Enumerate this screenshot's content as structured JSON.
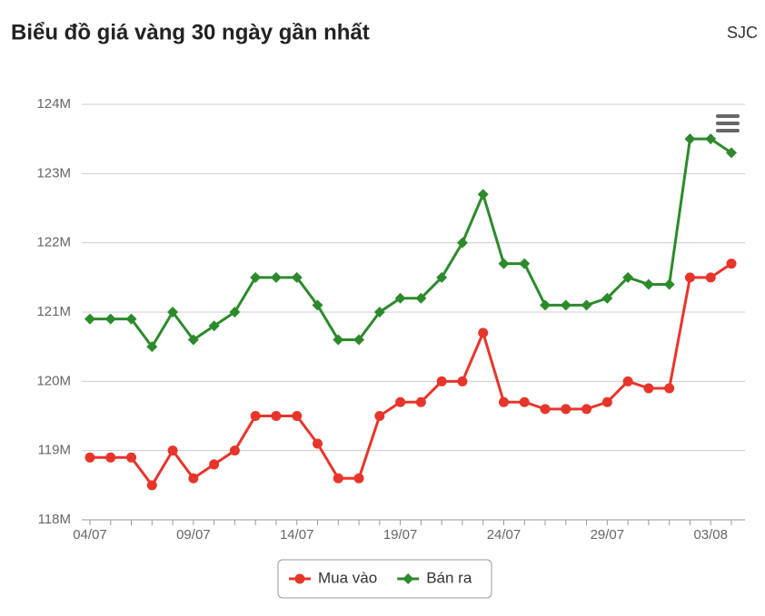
{
  "header": {
    "title": "Biểu đồ giá vàng 30 ngày gần nhất",
    "source": "SJC"
  },
  "chart_data": {
    "type": "line",
    "categories": [
      "04/07",
      null,
      null,
      null,
      null,
      "09/07",
      null,
      null,
      null,
      null,
      "14/07",
      null,
      null,
      null,
      null,
      "19/07",
      null,
      null,
      null,
      null,
      "24/07",
      null,
      null,
      null,
      null,
      "29/07",
      null,
      null,
      null,
      null,
      "03/08",
      null
    ],
    "series": [
      {
        "name": "Mua vào",
        "color": "#e8352b",
        "marker": "circle",
        "values": [
          118900000,
          118900000,
          118900000,
          118500000,
          119000000,
          118600000,
          118800000,
          119000000,
          119500000,
          119500000,
          119500000,
          119100000,
          118600000,
          118600000,
          119500000,
          119700000,
          119700000,
          120000000,
          120000000,
          120700000,
          119700000,
          119700000,
          119600000,
          119600000,
          119600000,
          119700000,
          120000000,
          119900000,
          119900000,
          121500000,
          121500000,
          121700000
        ]
      },
      {
        "name": "Bán ra",
        "color": "#2c8a2c",
        "marker": "diamond",
        "values": [
          120900000,
          120900000,
          120900000,
          120500000,
          121000000,
          120600000,
          120800000,
          121000000,
          121500000,
          121500000,
          121500000,
          121100000,
          120600000,
          120600000,
          121000000,
          121200000,
          121200000,
          121500000,
          122000000,
          122700000,
          121700000,
          121700000,
          121100000,
          121100000,
          121100000,
          121200000,
          121500000,
          121400000,
          121400000,
          123500000,
          123500000,
          123300000
        ]
      }
    ],
    "ylim": [
      118000000,
      124000000
    ],
    "yticks": [
      {
        "value": 118000000,
        "label": "118M"
      },
      {
        "value": 119000000,
        "label": "119M"
      },
      {
        "value": 120000000,
        "label": "120M"
      },
      {
        "value": 121000000,
        "label": "121M"
      },
      {
        "value": 122000000,
        "label": "122M"
      },
      {
        "value": 123000000,
        "label": "123M"
      },
      {
        "value": 124000000,
        "label": "124M"
      }
    ],
    "grid": true,
    "legend": "bottom"
  }
}
